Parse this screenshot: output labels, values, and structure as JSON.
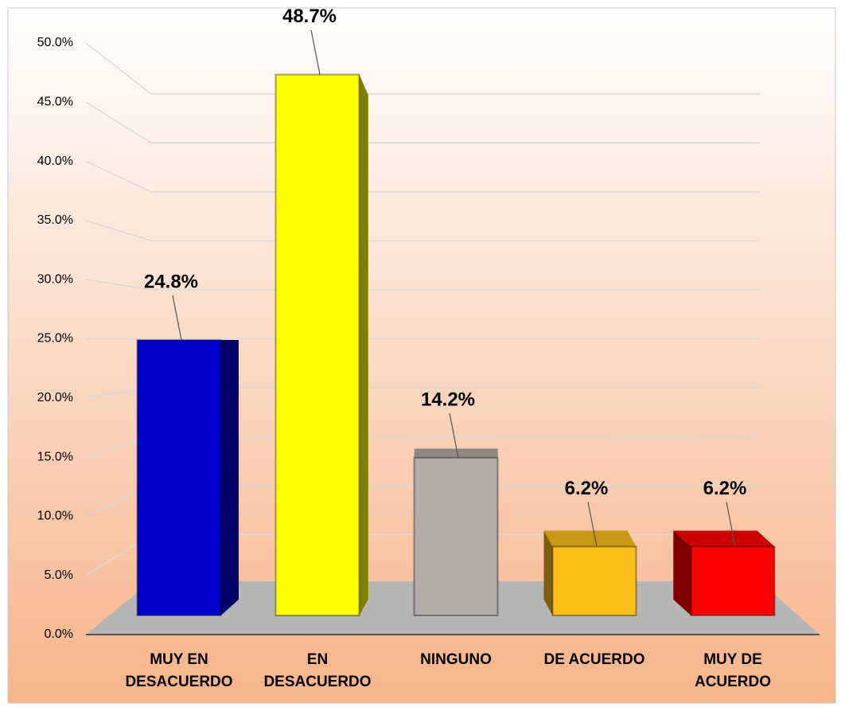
{
  "chart_data": {
    "type": "bar3d",
    "categories": [
      "MUY EN DESACUERDO",
      "EN DESACUERDO",
      "NINGUNO",
      "DE ACUERDO",
      "MUY DE ACUERDO"
    ],
    "values": [
      24.8,
      48.7,
      14.2,
      6.2,
      6.2
    ],
    "value_labels": [
      "24.8%",
      "48.7%",
      "14.2%",
      "6.2%",
      "6.2%"
    ],
    "colors": [
      "#0000cc",
      "#ffff00",
      "#b3aba7",
      "#fbbd18",
      "#ff0000"
    ],
    "ylim": [
      0,
      50
    ],
    "yticks": [
      {
        "value": 0,
        "label": "0.0%"
      },
      {
        "value": 5,
        "label": "5.0%"
      },
      {
        "value": 10,
        "label": "10.0%"
      },
      {
        "value": 15,
        "label": "15.0%"
      },
      {
        "value": 20,
        "label": "20.0%"
      },
      {
        "value": 25,
        "label": "25.0%"
      },
      {
        "value": 30,
        "label": "30.0%"
      },
      {
        "value": 35,
        "label": "35.0%"
      },
      {
        "value": 40,
        "label": "40.0%"
      },
      {
        "value": 45,
        "label": "45.0%"
      },
      {
        "value": 50,
        "label": "50.0%"
      }
    ],
    "grid": true
  }
}
